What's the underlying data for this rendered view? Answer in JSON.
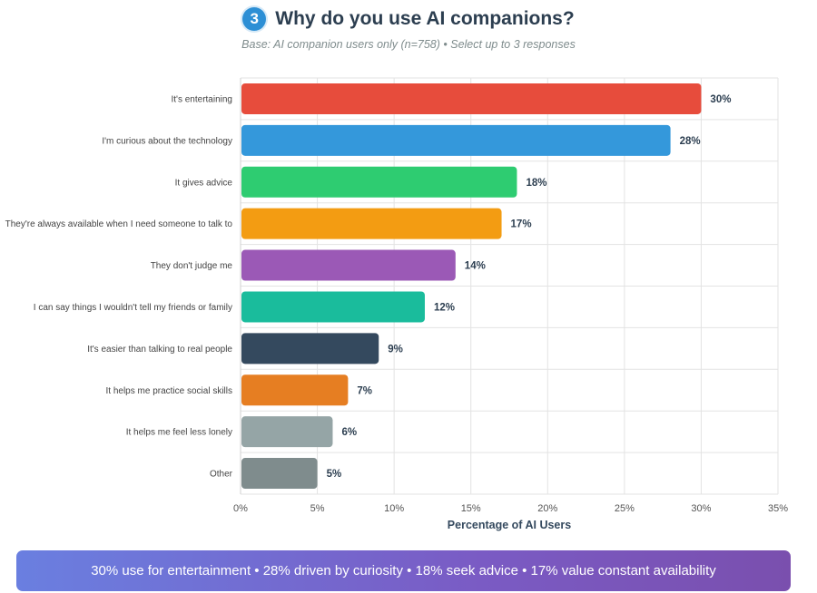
{
  "header": {
    "badge_number": "3",
    "title": "Why do you use AI companions?",
    "subtitle": "Base: AI companion users only (n=758) • Select up to 3 responses"
  },
  "chart_data": {
    "type": "bar",
    "orientation": "horizontal",
    "xlabel": "Percentage of AI Users",
    "ylabel": "",
    "xlim": [
      0,
      35
    ],
    "xticks": [
      "0%",
      "5%",
      "10%",
      "15%",
      "20%",
      "25%",
      "30%",
      "35%"
    ],
    "grid": true,
    "categories": [
      "It's entertaining",
      "I'm curious about the technology",
      "It gives advice",
      "They're always available when I need someone to talk to",
      "They don't judge me",
      "I can say things I wouldn't tell my friends or family",
      "It's easier than talking to real people",
      "It helps me practice social skills",
      "It helps me feel less lonely",
      "Other"
    ],
    "values": [
      30,
      28,
      18,
      17,
      14,
      12,
      9,
      7,
      6,
      5
    ],
    "data_labels": [
      "30%",
      "28%",
      "18%",
      "17%",
      "14%",
      "12%",
      "9%",
      "7%",
      "6%",
      "5%"
    ],
    "colors": [
      "#e74c3c",
      "#3498db",
      "#2ecc71",
      "#f39c12",
      "#9b59b6",
      "#1abc9c",
      "#34495e",
      "#e67e22",
      "#95a5a6",
      "#7f8c8d"
    ]
  },
  "footer": {
    "summary": "30% use for entertainment • 28% driven by curiosity • 18% seek advice • 17% value constant availability"
  }
}
